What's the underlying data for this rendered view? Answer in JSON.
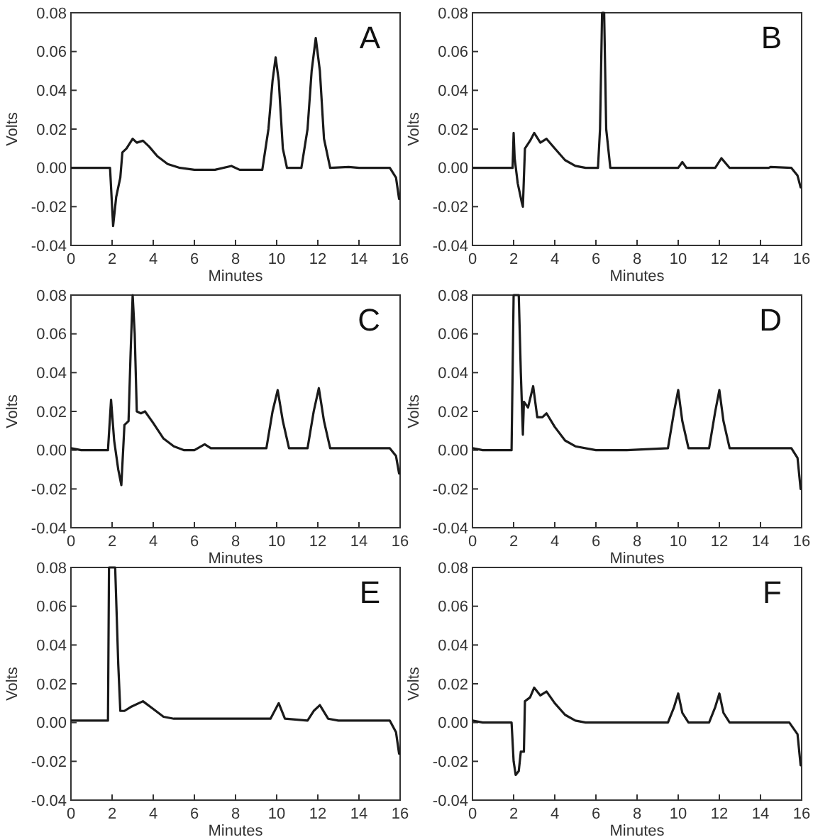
{
  "chart_data": [
    {
      "type": "line",
      "annotations": [
        "A"
      ],
      "xlabel": "Minutes",
      "ylabel": "Volts",
      "xlim": [
        0,
        16
      ],
      "ylim": [
        -0.04,
        0.08
      ],
      "xticks": [
        0,
        2,
        4,
        6,
        8,
        10,
        12,
        14,
        16
      ],
      "yticks": [
        {
          "value": -0.04,
          "label": "-0.04"
        },
        {
          "value": -0.02,
          "label": "-0.02"
        },
        {
          "value": 0,
          "label": "0.00"
        },
        {
          "value": 0.02,
          "label": "0.02"
        },
        {
          "value": 0.04,
          "label": "0.04"
        },
        {
          "value": 0.06,
          "label": "0.06"
        },
        {
          "value": 0.08,
          "label": "0.08"
        }
      ],
      "series": [
        {
          "color": "#1a1a1a",
          "x": [
            0,
            1.9,
            2.0,
            2.05,
            2.2,
            2.4,
            2.5,
            2.7,
            3.0,
            3.2,
            3.5,
            3.8,
            4.2,
            4.7,
            5.3,
            6,
            7,
            7.8,
            8.2,
            9.3,
            9.6,
            9.8,
            9.95,
            10.1,
            10.3,
            10.5,
            11.2,
            11.5,
            11.7,
            11.9,
            12.1,
            12.3,
            12.6,
            13.5,
            14,
            15.5,
            15.8,
            15.95
          ],
          "values": [
            0,
            0,
            -0.02,
            -0.03,
            -0.015,
            -0.005,
            0.008,
            0.01,
            0.015,
            0.013,
            0.014,
            0.011,
            0.006,
            0.002,
            0,
            -0.001,
            -0.001,
            0.001,
            -0.001,
            -0.001,
            0.02,
            0.045,
            0.057,
            0.045,
            0.01,
            0,
            0,
            0.02,
            0.05,
            0.067,
            0.05,
            0.015,
            0,
            0.0005,
            0,
            0,
            -0.005,
            -0.016
          ]
        }
      ]
    },
    {
      "type": "line",
      "annotations": [
        "B"
      ],
      "xlabel": "Minutes",
      "ylabel": "Volts",
      "xlim": [
        0,
        16
      ],
      "ylim": [
        -0.04,
        0.08
      ],
      "xticks": [
        0,
        2,
        4,
        6,
        8,
        10,
        12,
        14,
        16
      ],
      "yticks": [
        {
          "value": -0.04,
          "label": "-0.04"
        },
        {
          "value": -0.02,
          "label": "-0.02"
        },
        {
          "value": 0,
          "label": "0.00"
        },
        {
          "value": 0.02,
          "label": "0.02"
        },
        {
          "value": 0.04,
          "label": "0.04"
        },
        {
          "value": 0.06,
          "label": "0.06"
        },
        {
          "value": 0.08,
          "label": "0.08"
        }
      ],
      "series": [
        {
          "color": "#1a1a1a",
          "x": [
            0,
            1.95,
            2.0,
            2.05,
            2.2,
            2.4,
            2.45,
            2.55,
            2.8,
            3.0,
            3.3,
            3.6,
            4.0,
            4.5,
            5.0,
            5.5,
            6.1,
            6.2,
            6.3,
            6.4,
            6.5,
            6.7,
            10.0,
            10.2,
            10.4,
            11.8,
            12.1,
            12.5,
            14.4,
            14.5,
            15.5,
            15.8,
            15.95
          ],
          "values": [
            0,
            0,
            0.018,
            0.005,
            -0.008,
            -0.018,
            -0.02,
            0.01,
            0.014,
            0.018,
            0.013,
            0.015,
            0.01,
            0.004,
            0.001,
            0,
            0,
            0.02,
            0.08,
            0.08,
            0.02,
            0,
            0,
            0.003,
            0,
            0,
            0.005,
            0,
            0,
            0.0005,
            0,
            -0.004,
            -0.01
          ]
        }
      ]
    },
    {
      "type": "line",
      "annotations": [
        "C"
      ],
      "xlabel": "Minutes",
      "ylabel": "Volts",
      "xlim": [
        0,
        16
      ],
      "ylim": [
        -0.04,
        0.08
      ],
      "xticks": [
        0,
        2,
        4,
        6,
        8,
        10,
        12,
        14,
        16
      ],
      "yticks": [
        {
          "value": -0.04,
          "label": "-0.04"
        },
        {
          "value": -0.02,
          "label": "-0.02"
        },
        {
          "value": 0,
          "label": "0.00"
        },
        {
          "value": 0.02,
          "label": "0.02"
        },
        {
          "value": 0.04,
          "label": "0.04"
        },
        {
          "value": 0.06,
          "label": "0.06"
        },
        {
          "value": 0.08,
          "label": "0.08"
        }
      ],
      "series": [
        {
          "color": "#1a1a1a",
          "x": [
            0,
            0.5,
            1.8,
            1.95,
            2.1,
            2.3,
            2.45,
            2.6,
            2.8,
            2.9,
            3.0,
            3.1,
            3.2,
            3.4,
            3.6,
            4.0,
            4.5,
            5.0,
            5.5,
            6.0,
            6.5,
            6.8,
            9.5,
            9.8,
            10.05,
            10.3,
            10.6,
            11.5,
            11.8,
            12.05,
            12.3,
            12.6,
            15.5,
            15.8,
            15.95
          ],
          "values": [
            0.001,
            0,
            0,
            0.026,
            0.005,
            -0.01,
            -0.018,
            0.013,
            0.015,
            0.05,
            0.08,
            0.06,
            0.02,
            0.019,
            0.02,
            0.014,
            0.006,
            0.002,
            0,
            0,
            0.003,
            0.001,
            0.001,
            0.02,
            0.031,
            0.015,
            0.001,
            0.001,
            0.02,
            0.032,
            0.015,
            0.001,
            0.001,
            -0.003,
            -0.012
          ]
        }
      ]
    },
    {
      "type": "line",
      "annotations": [
        "D"
      ],
      "xlabel": "Minutes",
      "ylabel": "Volts",
      "xlim": [
        0,
        16
      ],
      "ylim": [
        -0.04,
        0.08
      ],
      "xticks": [
        0,
        2,
        4,
        6,
        8,
        10,
        12,
        14,
        16
      ],
      "yticks": [
        {
          "value": -0.04,
          "label": "-0.04"
        },
        {
          "value": -0.02,
          "label": "-0.02"
        },
        {
          "value": 0,
          "label": "0.00"
        },
        {
          "value": 0.02,
          "label": "0.02"
        },
        {
          "value": 0.04,
          "label": "0.04"
        },
        {
          "value": 0.06,
          "label": "0.06"
        },
        {
          "value": 0.08,
          "label": "0.08"
        }
      ],
      "series": [
        {
          "color": "#1a1a1a",
          "x": [
            0,
            0.5,
            1.9,
            2.0,
            2.25,
            2.35,
            2.45,
            2.5,
            2.7,
            2.95,
            3.15,
            3.4,
            3.6,
            4.0,
            4.5,
            5.0,
            6,
            7,
            7.5,
            9.5,
            9.8,
            10.0,
            10.2,
            10.5,
            11.5,
            11.8,
            12.0,
            12.2,
            12.5,
            15.5,
            15.8,
            15.95
          ],
          "values": [
            0.001,
            0,
            0,
            0.08,
            0.08,
            0.04,
            0.008,
            0.025,
            0.022,
            0.033,
            0.017,
            0.017,
            0.019,
            0.012,
            0.005,
            0.002,
            0,
            0,
            0,
            0.001,
            0.02,
            0.031,
            0.015,
            0.001,
            0.001,
            0.02,
            0.031,
            0.015,
            0.001,
            0.001,
            -0.004,
            -0.02
          ]
        }
      ]
    },
    {
      "type": "line",
      "annotations": [
        "E"
      ],
      "xlabel": "Minutes",
      "ylabel": "Volts",
      "xlim": [
        0,
        16
      ],
      "ylim": [
        -0.04,
        0.08
      ],
      "xticks": [
        0,
        2,
        4,
        6,
        8,
        10,
        12,
        14,
        16
      ],
      "yticks": [
        {
          "value": -0.04,
          "label": "-0.04"
        },
        {
          "value": -0.02,
          "label": "-0.02"
        },
        {
          "value": 0,
          "label": "0.00"
        },
        {
          "value": 0.02,
          "label": "0.02"
        },
        {
          "value": 0.04,
          "label": "0.04"
        },
        {
          "value": 0.06,
          "label": "0.06"
        },
        {
          "value": 0.08,
          "label": "0.08"
        }
      ],
      "series": [
        {
          "color": "#1a1a1a",
          "x": [
            0,
            1.8,
            1.85,
            2.15,
            2.3,
            2.4,
            2.6,
            2.9,
            3.5,
            4.0,
            4.5,
            5,
            9.7,
            10.0,
            10.1,
            10.4,
            11.5,
            11.8,
            12.1,
            12.5,
            13,
            15.5,
            15.8,
            15.95
          ],
          "values": [
            0.001,
            0.001,
            0.08,
            0.08,
            0.03,
            0.006,
            0.006,
            0.008,
            0.011,
            0.007,
            0.003,
            0.002,
            0.002,
            0.008,
            0.01,
            0.002,
            0.001,
            0.006,
            0.009,
            0.002,
            0.001,
            0.001,
            -0.005,
            -0.016
          ]
        }
      ]
    },
    {
      "type": "line",
      "annotations": [
        "F"
      ],
      "xlabel": "Minutes",
      "ylabel": "Volts",
      "xlim": [
        0,
        16
      ],
      "ylim": [
        -0.04,
        0.08
      ],
      "xticks": [
        0,
        2,
        4,
        6,
        8,
        10,
        12,
        14,
        16
      ],
      "yticks": [
        {
          "value": -0.04,
          "label": "-0.04"
        },
        {
          "value": -0.02,
          "label": "-0.02"
        },
        {
          "value": 0,
          "label": "0.00"
        },
        {
          "value": 0.02,
          "label": "0.02"
        },
        {
          "value": 0.04,
          "label": "0.04"
        },
        {
          "value": 0.06,
          "label": "0.06"
        },
        {
          "value": 0.08,
          "label": "0.08"
        }
      ],
      "series": [
        {
          "color": "#1a1a1a",
          "x": [
            0,
            0.5,
            1.9,
            2.0,
            2.1,
            2.25,
            2.35,
            2.5,
            2.55,
            2.8,
            3.0,
            3.3,
            3.6,
            4.0,
            4.5,
            5.0,
            5.5,
            9.5,
            9.8,
            10.0,
            10.2,
            10.5,
            11.5,
            11.8,
            12.0,
            12.2,
            12.5,
            15.4,
            15.8,
            15.95
          ],
          "values": [
            0.001,
            0,
            0,
            -0.02,
            -0.027,
            -0.025,
            -0.015,
            -0.015,
            0.011,
            0.013,
            0.018,
            0.014,
            0.016,
            0.01,
            0.004,
            0.001,
            0,
            0,
            0.008,
            0.015,
            0.005,
            0,
            0,
            0.008,
            0.015,
            0.005,
            0,
            0,
            -0.006,
            -0.022
          ]
        }
      ]
    }
  ]
}
